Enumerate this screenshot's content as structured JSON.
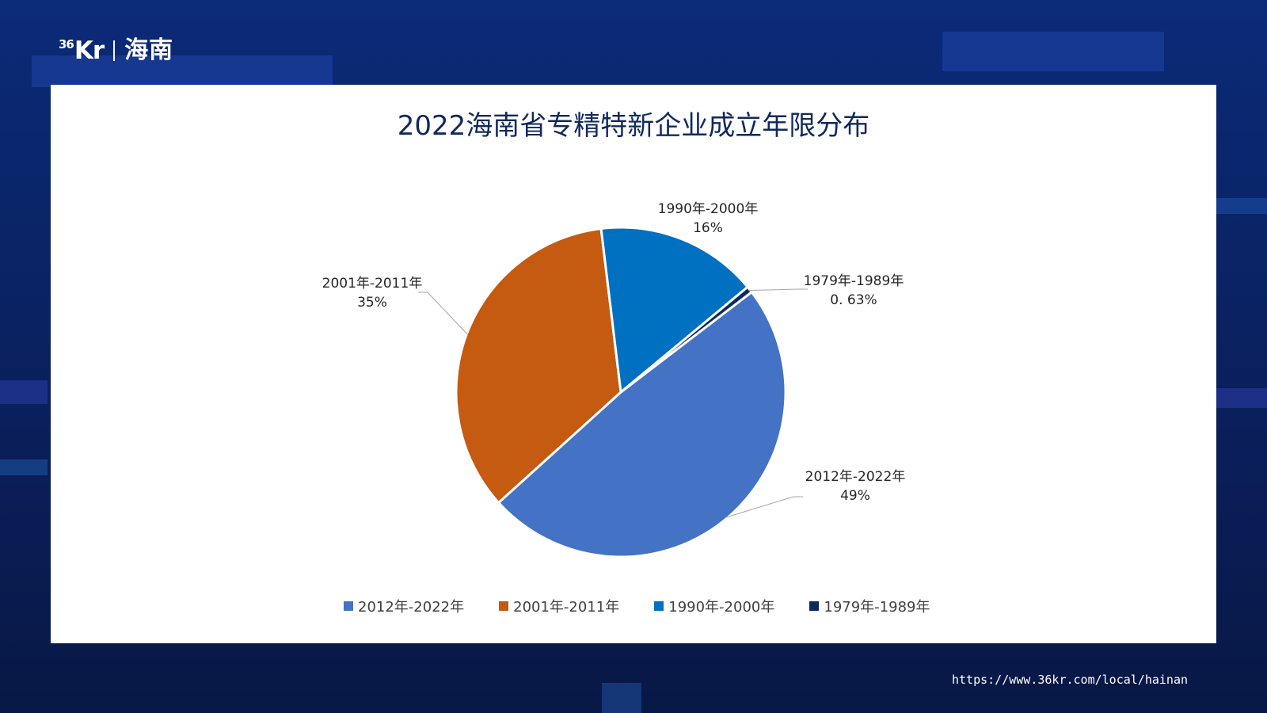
{
  "brand": {
    "mark": "Kr",
    "mark_prefix": "36",
    "region": "海南"
  },
  "footer": {
    "url": "https://www.36kr.com/local/hainan"
  },
  "colors": {
    "background": "#0a2466",
    "card": "#ffffff",
    "title": "#10295c"
  },
  "chart_data": {
    "type": "pie",
    "title": "2022海南省专精特新企业成立年限分布",
    "legend_position": "bottom",
    "slices": [
      {
        "label": "2012年-2022年",
        "value": 49,
        "value_label": "49%",
        "color": "#4472c4"
      },
      {
        "label": "2001年-2011年",
        "value": 35,
        "value_label": "35%",
        "color": "#c55a11"
      },
      {
        "label": "1990年-2000年",
        "value": 16,
        "value_label": "16%",
        "color": "#0070c0"
      },
      {
        "label": "1979年-1989年",
        "value": 0.63,
        "value_label": "0. 63%",
        "color": "#0d2a5e"
      }
    ]
  }
}
